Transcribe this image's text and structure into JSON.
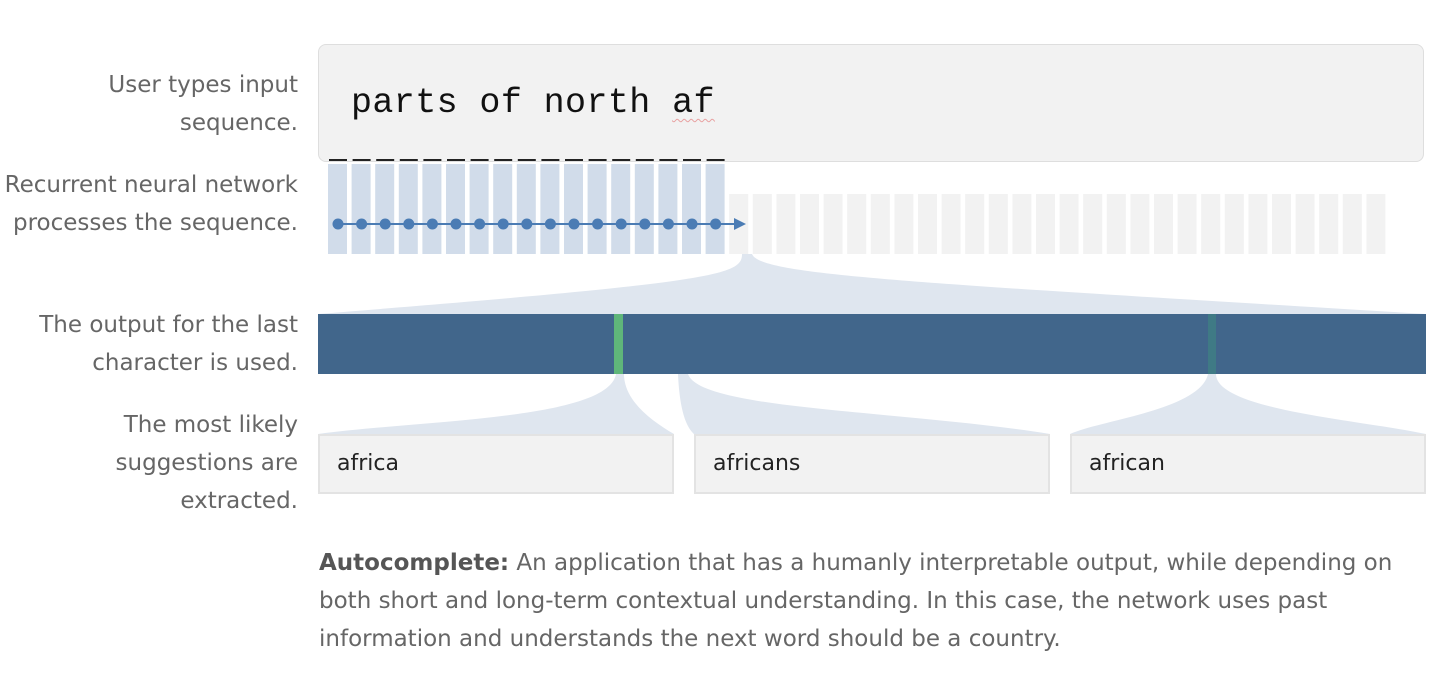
{
  "steps": {
    "input": "User types input sequence.",
    "rnn": "Recurrent neural network processes the sequence.",
    "output": "The output for the last character is used.",
    "suggest": "The most likely suggestions are extracted."
  },
  "input": {
    "text_before": "parts of north ",
    "text_flagged": "af"
  },
  "suggestions": [
    "africa",
    "africans",
    "african"
  ],
  "caption": {
    "bold": "Autocomplete:",
    "text": " An application that has a humanly interpretable output, while depending on both short and long-term contextual understanding. In this case, the network uses past information and understands the next word should be a country."
  },
  "colors": {
    "output_bar": "#41668b",
    "highlight_green": "#5fb67a",
    "highlight_teal": "#3f7a85",
    "rnn_active": "#c9d6e6",
    "rnn_inactive": "#f2f2f2",
    "node": "#4b7cb4",
    "funnel": "#dfe6ef"
  }
}
